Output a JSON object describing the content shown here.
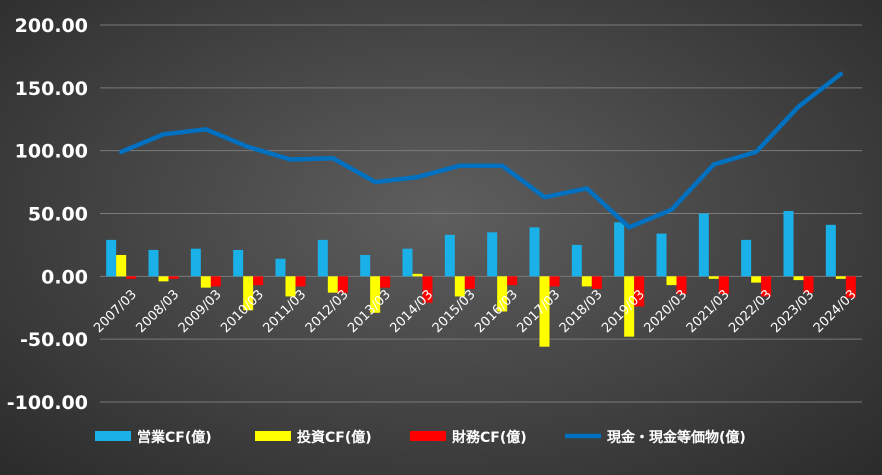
{
  "chart_data": {
    "type": "bar",
    "categories": [
      "2007/03",
      "2008/03",
      "2009/03",
      "2010/03",
      "2011/03",
      "2012/03",
      "2013/03",
      "2014/03",
      "2015/03",
      "2016/03",
      "2017/03",
      "2018/03",
      "2019/03",
      "2020/03",
      "2021/03",
      "2022/03",
      "2023/03",
      "2024/03"
    ],
    "series": [
      {
        "name": "営業CF(億)",
        "type": "bar",
        "color": "#1ab0e8",
        "values": [
          29,
          21,
          22,
          21,
          14,
          29,
          17,
          22,
          33,
          35,
          39,
          25,
          43,
          34,
          50,
          29,
          52,
          41
        ]
      },
      {
        "name": "投資CF(億)",
        "type": "bar",
        "color": "#ffff00",
        "values": [
          17,
          -4,
          -9,
          -27,
          -16,
          -13,
          -29,
          2,
          -16,
          -28,
          -56,
          -8,
          -48,
          -7,
          -2,
          -5,
          -3,
          -2
        ]
      },
      {
        "name": "財務CF(億)",
        "type": "bar",
        "color": "#ff0000",
        "values": [
          -2,
          -2,
          -8,
          -7,
          -8,
          -13,
          -9,
          -21,
          -10,
          -7,
          -8,
          -10,
          -24,
          -14,
          -14,
          -16,
          -13,
          -17
        ]
      },
      {
        "name": "現金・現金等価物(億)",
        "type": "line",
        "color": "#0070c0",
        "values": [
          99,
          113,
          117,
          103,
          93,
          94,
          75,
          79,
          88,
          88,
          63,
          70,
          39,
          53,
          89,
          99,
          135,
          161
        ]
      }
    ],
    "yticks": [
      "200.00",
      "150.00",
      "100.00",
      "50.00",
      "0.00",
      "-50.00",
      "-100.00"
    ],
    "ylim": [
      -100,
      200
    ],
    "grid": true,
    "legend": "bottom"
  }
}
